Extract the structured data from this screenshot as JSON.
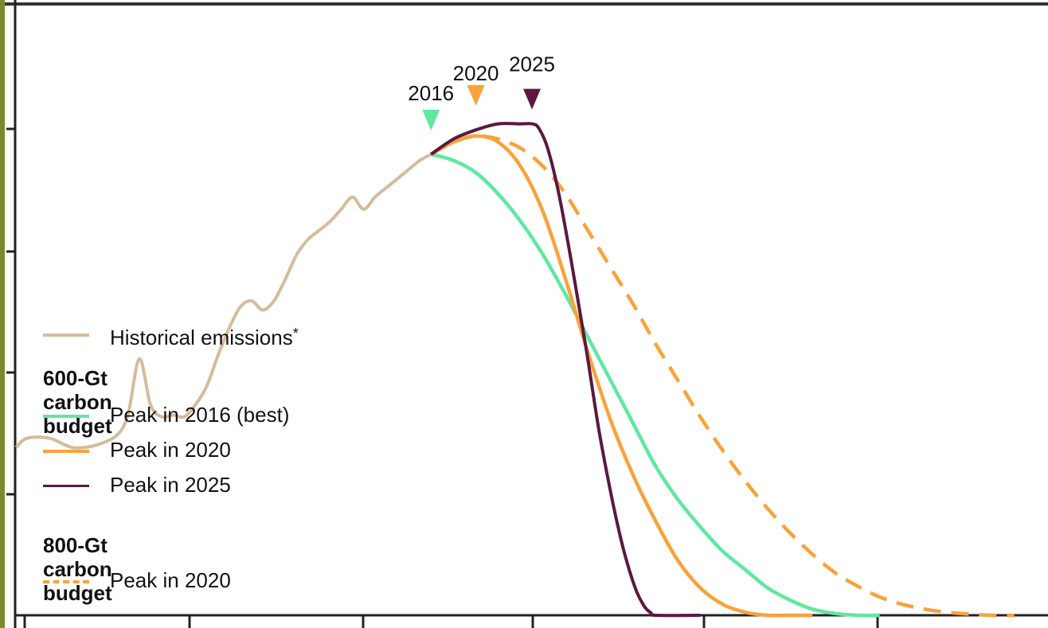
{
  "chart_data": {
    "type": "line",
    "title": "",
    "xlabel": "",
    "ylabel": "",
    "x_range": [
      1979,
      2071
    ],
    "y_range": [
      0,
      100
    ],
    "grid": false,
    "legend_position": "bottom-left",
    "series": [
      {
        "name": "Historical emissions*",
        "legend_suffix": "*",
        "color": "#d4bc9c",
        "dash": false,
        "x": [
          1979,
          1980,
          1982,
          1984,
          1986,
          1988,
          1989,
          1990,
          1991,
          1992,
          1993,
          1994,
          1995,
          1996,
          1997,
          1998,
          1999,
          2000,
          2001,
          2002,
          2003,
          2004,
          2005,
          2006,
          2007,
          2008,
          2009,
          2010,
          2011,
          2012,
          2013,
          2014,
          2015,
          2016
        ],
        "y": [
          27.5,
          29.0,
          29.0,
          27.5,
          27.8,
          29.5,
          33.0,
          42.0,
          34.5,
          32.5,
          32.8,
          32.5,
          34.5,
          37.5,
          42.5,
          47.0,
          50.5,
          51.5,
          50.0,
          51.5,
          55.0,
          59.0,
          61.5,
          63.0,
          64.5,
          66.5,
          68.5,
          66.5,
          68.5,
          70.0,
          71.5,
          73.0,
          74.5,
          75.5
        ]
      },
      {
        "name": "Peak in 2016 (best)",
        "legend_group": "600-Gt carbon budget",
        "color": "#5fe8a0",
        "dash": false,
        "x": [
          2016,
          2018,
          2020,
          2022,
          2024,
          2026,
          2028,
          2030,
          2032,
          2034,
          2036,
          2038,
          2040,
          2042,
          2044,
          2046,
          2048,
          2050,
          2052,
          2054,
          2056
        ],
        "y": [
          75.5,
          74.5,
          72.5,
          69.0,
          64.5,
          59.0,
          52.5,
          45.5,
          38.5,
          31.5,
          24.5,
          19.0,
          14.5,
          10.5,
          7.5,
          4.5,
          2.5,
          1.0,
          0.3,
          0.0,
          0.0
        ]
      },
      {
        "name": "Peak in 2020",
        "legend_group": "600-Gt carbon budget",
        "color": "#f9a23a",
        "dash": false,
        "x": [
          2016,
          2018,
          2020,
          2022,
          2024,
          2026,
          2028,
          2030,
          2032,
          2034,
          2036,
          2038,
          2040,
          2042,
          2044,
          2046,
          2048,
          2050
        ],
        "y": [
          75.5,
          77.5,
          78.5,
          77.5,
          73.5,
          66.0,
          55.0,
          43.0,
          32.0,
          23.0,
          15.5,
          9.0,
          4.5,
          1.8,
          0.5,
          0.0,
          0.0,
          0.0
        ]
      },
      {
        "name": "Peak in 2025",
        "legend_group": "600-Gt carbon budget",
        "color": "#5a1840",
        "dash": false,
        "x": [
          2016,
          2018,
          2020,
          2022,
          2024,
          2025,
          2025.6,
          2026.4,
          2027.4,
          2028.6,
          2029.8,
          2031,
          2032.2,
          2033.2,
          2034.2,
          2035,
          2035.6,
          2036,
          2040
        ],
        "y": [
          75.5,
          78.0,
          79.5,
          80.5,
          80.5,
          80.5,
          79.8,
          76.5,
          69.0,
          57.0,
          44.0,
          30.0,
          18.5,
          10.5,
          4.5,
          1.5,
          0.4,
          0.0,
          0.0
        ]
      },
      {
        "name": "Peak in 2020",
        "legend_group": "800-Gt carbon budget",
        "color": "#f9a23a",
        "dash": true,
        "x": [
          2016,
          2018,
          2020,
          2022,
          2024,
          2026,
          2028,
          2030,
          2032,
          2034,
          2036,
          2038,
          2040,
          2042,
          2044,
          2046,
          2048,
          2050,
          2052,
          2054,
          2056,
          2058,
          2060,
          2062,
          2064,
          2066,
          2068
        ],
        "y": [
          75.5,
          77.5,
          78.5,
          78.0,
          76.5,
          73.5,
          69.0,
          63.0,
          57.0,
          51.0,
          44.5,
          38.5,
          32.5,
          27.0,
          22.0,
          17.5,
          13.5,
          10.0,
          7.0,
          4.8,
          3.0,
          1.8,
          1.0,
          0.5,
          0.2,
          0.0,
          0.0
        ]
      }
    ],
    "peak_markers": [
      {
        "label": "2016",
        "x": 2016,
        "y": 75.5,
        "color": "#5fe8a0"
      },
      {
        "label": "2020",
        "x": 2020,
        "y": 78.5,
        "color": "#f9a23a"
      },
      {
        "label": "2025",
        "x": 2025,
        "y": 80.5,
        "color": "#5a1840"
      }
    ],
    "legend": {
      "historical_label": "Historical emissions",
      "historical_suffix": "*",
      "group_600_title": "600-Gt carbon budget",
      "group_600_items": [
        "Peak in 2016 (best)",
        "Peak in 2020",
        "Peak in 2025"
      ],
      "group_800_title": "800-Gt carbon budget",
      "group_800_items": [
        "Peak in 2020"
      ]
    }
  }
}
